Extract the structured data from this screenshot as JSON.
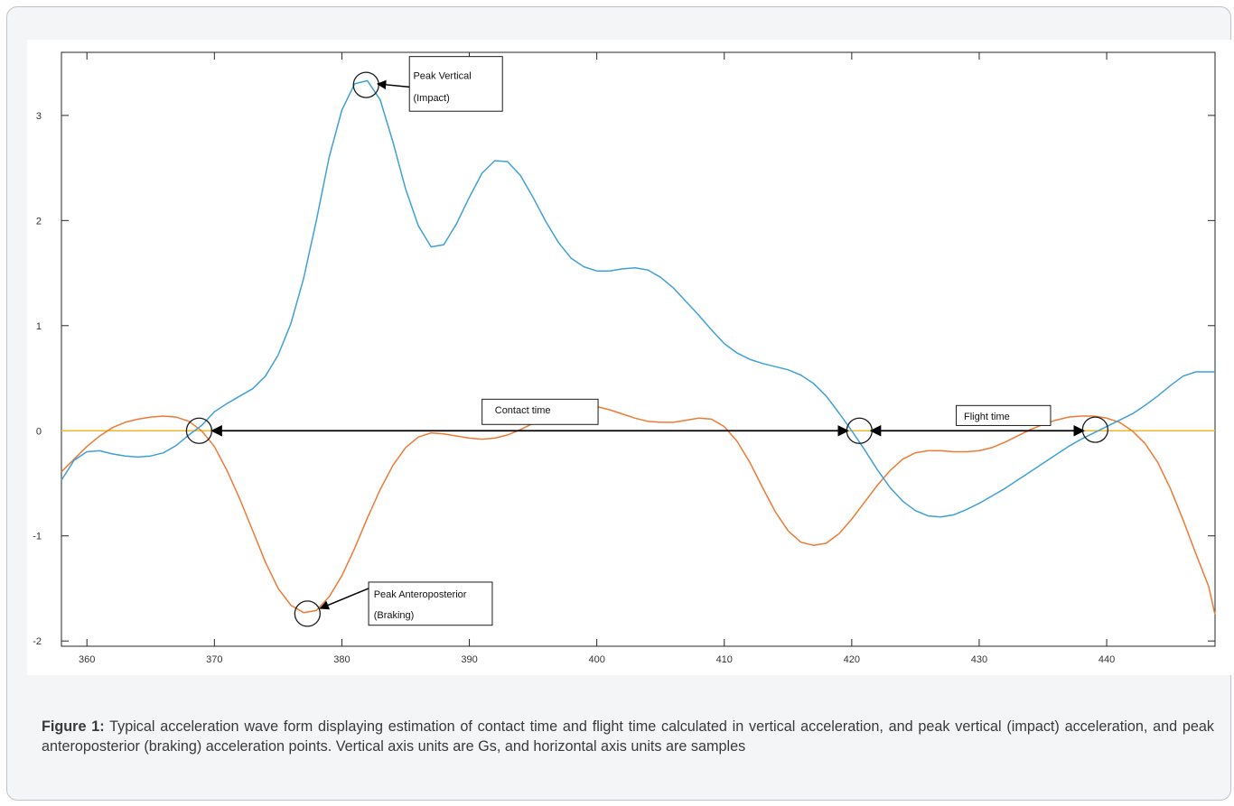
{
  "figure": {
    "caption_label": "Figure 1:",
    "caption_text": " Typical acceleration wave form displaying estimation of contact time and flight time calculated in vertical acceleration, and peak vertical (impact) acceleration, and peak anteroposterior (braking) acceleration points. Vertical axis units are Gs, and horizontal axis units are samples"
  },
  "chart_data": {
    "type": "line",
    "title": "",
    "xlabel": "",
    "ylabel": "",
    "xlim": [
      358,
      448.5
    ],
    "ylim": [
      -2.05,
      3.6
    ],
    "xticks": [
      360,
      370,
      380,
      390,
      400,
      410,
      420,
      430,
      440
    ],
    "yticks": [
      -2,
      -1,
      0,
      1,
      2,
      3
    ],
    "grid": false,
    "legend": "none",
    "series": [
      {
        "color": "#3fa0d8",
        "x": [
          358,
          359,
          360,
          361,
          362,
          363,
          364,
          365,
          366,
          367,
          368,
          369,
          370,
          371,
          372,
          373,
          374,
          375,
          376,
          377,
          378,
          379,
          380,
          381,
          382,
          383,
          384,
          385,
          386,
          387,
          388,
          389,
          390,
          391,
          392,
          393,
          394,
          395,
          396,
          397,
          398,
          399,
          400,
          401,
          402,
          403,
          404,
          405,
          406,
          407,
          408,
          409,
          410,
          411,
          412,
          413,
          414,
          415,
          416,
          417,
          418,
          419,
          420,
          421,
          422,
          423,
          424,
          425,
          426,
          427,
          428,
          429,
          430,
          431,
          432,
          433,
          434,
          435,
          436,
          437,
          438,
          439,
          440,
          441,
          442,
          443,
          444,
          445,
          446,
          447,
          448,
          448.5
        ],
        "values": [
          -0.47,
          -0.28,
          -0.2,
          -0.19,
          -0.22,
          -0.24,
          -0.25,
          -0.24,
          -0.21,
          -0.14,
          -0.04,
          0.05,
          0.18,
          0.26,
          0.33,
          0.4,
          0.52,
          0.72,
          1.02,
          1.45,
          2.0,
          2.6,
          3.05,
          3.3,
          3.33,
          3.15,
          2.75,
          2.3,
          1.95,
          1.75,
          1.77,
          1.97,
          2.22,
          2.45,
          2.57,
          2.56,
          2.43,
          2.22,
          1.99,
          1.79,
          1.64,
          1.56,
          1.52,
          1.52,
          1.54,
          1.55,
          1.53,
          1.46,
          1.36,
          1.23,
          1.1,
          0.96,
          0.83,
          0.74,
          0.68,
          0.64,
          0.61,
          0.58,
          0.53,
          0.45,
          0.33,
          0.17,
          0.0,
          -0.18,
          -0.37,
          -0.54,
          -0.67,
          -0.76,
          -0.81,
          -0.82,
          -0.8,
          -0.75,
          -0.69,
          -0.62,
          -0.55,
          -0.47,
          -0.39,
          -0.31,
          -0.23,
          -0.15,
          -0.08,
          -0.02,
          0.04,
          0.1,
          0.16,
          0.24,
          0.33,
          0.43,
          0.52,
          0.56,
          0.56,
          0.56
        ]
      },
      {
        "color": "#ee7a34",
        "x": [
          358,
          359,
          360,
          361,
          362,
          363,
          364,
          365,
          366,
          367,
          368,
          369,
          370,
          371,
          372,
          373,
          374,
          375,
          376,
          377,
          378,
          379,
          380,
          381,
          382,
          383,
          384,
          385,
          386,
          387,
          388,
          389,
          390,
          391,
          392,
          393,
          394,
          395,
          396,
          397,
          398,
          399,
          400,
          401,
          402,
          403,
          404,
          405,
          406,
          407,
          408,
          409,
          410,
          411,
          412,
          413,
          414,
          415,
          416,
          417,
          418,
          419,
          420,
          421,
          422,
          423,
          424,
          425,
          426,
          427,
          428,
          429,
          430,
          431,
          432,
          433,
          434,
          435,
          436,
          437,
          438,
          439,
          440,
          441,
          442,
          443,
          444,
          445,
          446,
          447,
          448,
          448.5
        ],
        "values": [
          -0.39,
          -0.27,
          -0.15,
          -0.05,
          0.03,
          0.08,
          0.11,
          0.13,
          0.14,
          0.13,
          0.09,
          0.0,
          -0.15,
          -0.38,
          -0.65,
          -0.95,
          -1.25,
          -1.5,
          -1.66,
          -1.73,
          -1.71,
          -1.58,
          -1.38,
          -1.12,
          -0.83,
          -0.56,
          -0.33,
          -0.16,
          -0.06,
          -0.02,
          -0.03,
          -0.05,
          -0.07,
          -0.08,
          -0.07,
          -0.04,
          0.01,
          0.07,
          0.14,
          0.2,
          0.23,
          0.24,
          0.23,
          0.2,
          0.16,
          0.12,
          0.09,
          0.08,
          0.08,
          0.1,
          0.12,
          0.11,
          0.04,
          -0.1,
          -0.3,
          -0.54,
          -0.77,
          -0.95,
          -1.06,
          -1.09,
          -1.07,
          -0.98,
          -0.84,
          -0.68,
          -0.52,
          -0.38,
          -0.27,
          -0.21,
          -0.19,
          -0.19,
          -0.2,
          -0.2,
          -0.19,
          -0.16,
          -0.11,
          -0.05,
          0.01,
          0.06,
          0.1,
          0.13,
          0.14,
          0.14,
          0.12,
          0.08,
          0.0,
          -0.12,
          -0.3,
          -0.55,
          -0.85,
          -1.17,
          -1.48,
          -1.75
        ]
      },
      {
        "color": "#f2b72b",
        "x": [
          358,
          448.5
        ],
        "values": [
          0,
          0
        ]
      }
    ],
    "markers": [
      {
        "x": 368.8,
        "y": 0.0
      },
      {
        "x": 381.9,
        "y": 3.29
      },
      {
        "x": 377.3,
        "y": -1.74
      },
      {
        "x": 420.6,
        "y": 0.0
      },
      {
        "x": 439.1,
        "y": 0.01
      }
    ],
    "annotations": [
      {
        "name": "peak-vertical",
        "lines": [
          "Peak Vertical",
          "(Impact)"
        ],
        "box_x": [
          385.3,
          392.6
        ],
        "box_y": [
          3.56,
          3.04
        ],
        "text_x": 385.6,
        "text_y": [
          3.38,
          3.17
        ],
        "arrow_from": [
          385.3,
          3.27
        ],
        "arrow_to": [
          382.8,
          3.3
        ]
      },
      {
        "name": "peak-anteroposterior",
        "lines": [
          "Peak Anteroposterior",
          "(Braking)"
        ],
        "box_x": [
          382.1,
          391.8
        ],
        "box_y": [
          -1.44,
          -1.85
        ],
        "text_x": 382.5,
        "text_y": [
          -1.55,
          -1.75
        ],
        "arrow_from": [
          382.1,
          -1.5
        ],
        "arrow_to": [
          378.3,
          -1.69
        ]
      },
      {
        "name": "contact-time",
        "lines": [
          "Contact time"
        ],
        "box_x": [
          391.0,
          400.1
        ],
        "box_y": [
          0.3,
          0.06
        ],
        "text_x": 392.0,
        "text_y": [
          0.2
        ],
        "double_arrow": [
          369.8,
          419.7,
          0.0
        ]
      },
      {
        "name": "flight-time",
        "lines": [
          "Flight time"
        ],
        "box_x": [
          415.0,
          422.0
        ],
        "box_y": [
          0.24,
          0.05
        ],
        "text_x": 416.0,
        "text_y": [
          0.14
        ],
        "box_x2": [
          428.2,
          435.6
        ],
        "text_x2": 428.8,
        "double_arrow": [
          421.5,
          438.2,
          0.0
        ]
      }
    ]
  }
}
